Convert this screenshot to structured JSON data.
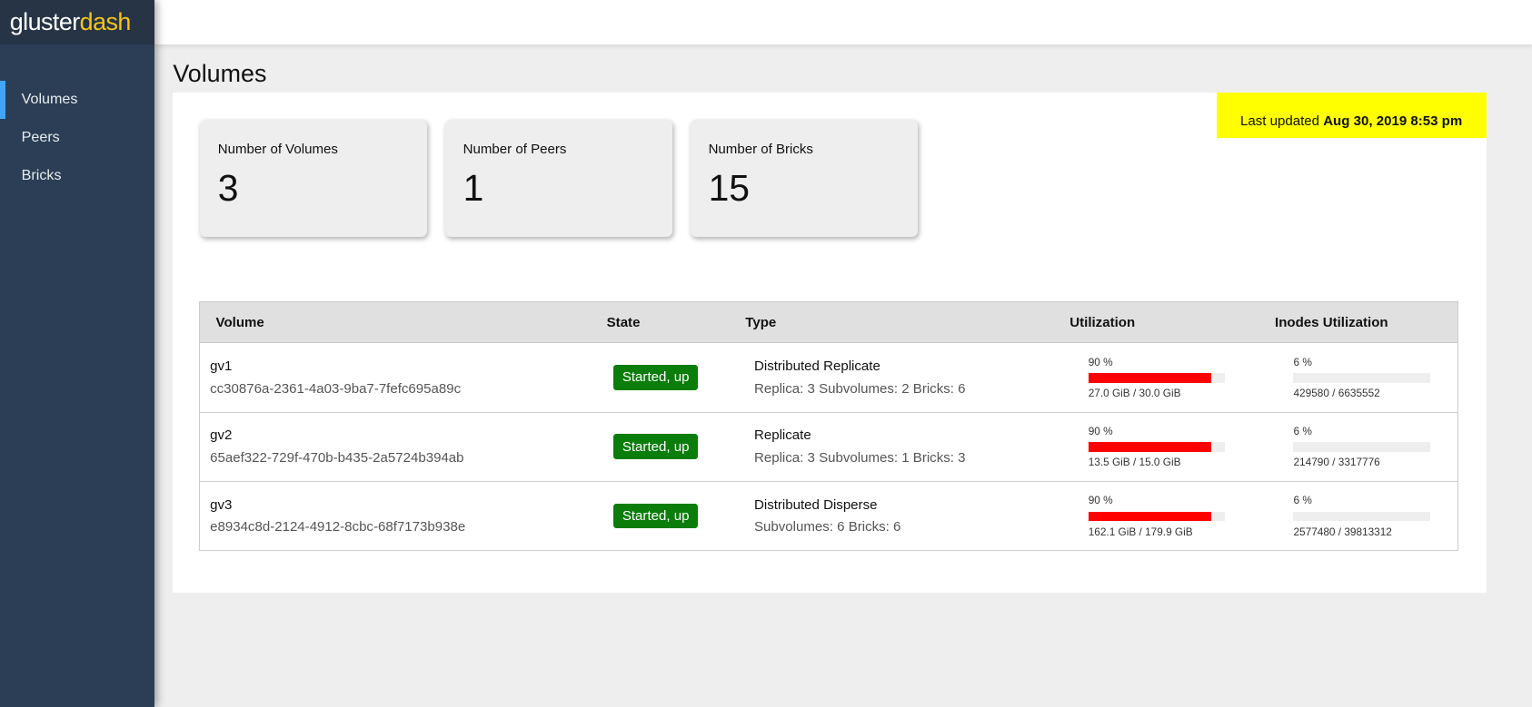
{
  "app": {
    "logo_a": "gluster",
    "logo_b": "dash"
  },
  "sidebar": {
    "items": [
      {
        "label": "Volumes",
        "active": true
      },
      {
        "label": "Peers"
      },
      {
        "label": "Bricks"
      }
    ]
  },
  "page": {
    "title": "Volumes",
    "last_updated_label": "Last updated",
    "last_updated_value": "Aug 30, 2019 8:53 pm"
  },
  "cards": [
    {
      "label": "Number of Volumes",
      "value": "3"
    },
    {
      "label": "Number of Peers",
      "value": "1"
    },
    {
      "label": "Number of Bricks",
      "value": "15"
    }
  ],
  "table": {
    "headers": [
      "Volume",
      "State",
      "Type",
      "Utilization",
      "Inodes Utilization"
    ],
    "rows": [
      {
        "name": "gv1",
        "id": "cc30876a-2361-4a03-9ba7-7fefc695a89c",
        "state": "Started, up",
        "type": "Distributed Replicate",
        "details": "Replica: 3 Subvolumes: 2 Bricks: 6",
        "util_pct": 90,
        "util_label": "90 %",
        "util_text": "27.0 GiB / 30.0 GiB",
        "inode_pct": 6,
        "inode_label": "6 %",
        "inode_text": "429580 / 6635552"
      },
      {
        "name": "gv2",
        "id": "65aef322-729f-470b-b435-2a5724b394ab",
        "state": "Started, up",
        "type": "Replicate",
        "details": "Replica: 3 Subvolumes: 1 Bricks: 3",
        "util_pct": 90,
        "util_label": "90 %",
        "util_text": "13.5 GiB / 15.0 GiB",
        "inode_pct": 6,
        "inode_label": "6 %",
        "inode_text": "214790 / 3317776"
      },
      {
        "name": "gv3",
        "id": "e8934c8d-2124-4912-8cbc-68f7173b938e",
        "state": "Started, up",
        "type": "Distributed Disperse",
        "details": "Subvolumes: 6 Bricks: 6",
        "util_pct": 90,
        "util_label": "90 %",
        "util_text": "162.1 GiB / 179.9 GiB",
        "inode_pct": 6,
        "inode_label": "6 %",
        "inode_text": "2577480 / 39813312"
      }
    ]
  },
  "colors": {
    "util_fill": "#ff0000",
    "inode_fill": "#eeeeee",
    "state_badge": "#0a7d0a",
    "updated_bg": "#ffff00",
    "accent": "#42a5f5"
  }
}
